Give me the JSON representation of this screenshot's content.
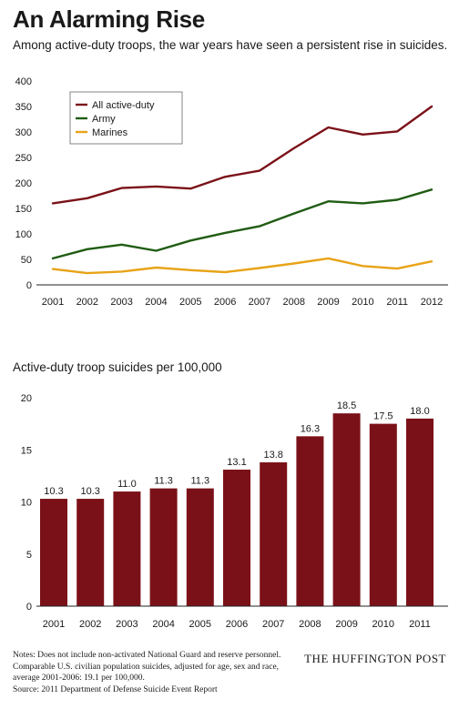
{
  "title": "An Alarming Rise",
  "subtitle": "Among active-duty troops, the war years have seen a persistent rise in suicides.",
  "colors": {
    "all": "#7b1118",
    "army": "#1f5c12",
    "marines": "#e8a317",
    "bar": "#7b1118",
    "axis": "#222222"
  },
  "chart_data": [
    {
      "type": "line",
      "title": "",
      "x": [
        "2001",
        "2002",
        "2003",
        "2004",
        "2005",
        "2006",
        "2007",
        "2008",
        "2009",
        "2010",
        "2011",
        "2012"
      ],
      "ylim": [
        0,
        400
      ],
      "yticks": [
        "0",
        "50",
        "100",
        "150",
        "200",
        "250",
        "300",
        "350",
        "400"
      ],
      "grid": false,
      "legend": "top-left",
      "series": [
        {
          "name": "All active-duty",
          "values": [
            160,
            170,
            190,
            193,
            189,
            212,
            224,
            268,
            309,
            295,
            301,
            350
          ]
        },
        {
          "name": "Army",
          "values": [
            52,
            70,
            79,
            67,
            87,
            102,
            115,
            140,
            164,
            160,
            167,
            187
          ]
        },
        {
          "name": "Marines",
          "values": [
            31,
            23,
            26,
            34,
            29,
            25,
            33,
            42,
            52,
            37,
            32,
            46
          ]
        }
      ]
    },
    {
      "type": "bar",
      "title": "Active-duty troop suicides per 100,000",
      "categories": [
        "2001",
        "2002",
        "2003",
        "2004",
        "2005",
        "2006",
        "2007",
        "2008",
        "2009",
        "2010",
        "2011"
      ],
      "values": [
        10.3,
        10.3,
        11.0,
        11.3,
        11.3,
        13.1,
        13.8,
        16.3,
        18.5,
        17.5,
        18.0
      ],
      "value_labels": [
        "10.3",
        "10.3",
        "11.0",
        "11.3",
        "11.3",
        "13.1",
        "13.8",
        "16.3",
        "18.5",
        "17.5",
        "18.0"
      ],
      "ylim": [
        0,
        20
      ],
      "yticks": [
        "0",
        "5",
        "10",
        "15",
        "20"
      ],
      "grid": false
    }
  ],
  "notes": [
    "Notes: Does not include non-activated National Guard and reserve personnel.",
    "Comparable U.S. civilian population suicides, adjusted for age, sex and race,",
    "average 2001-2006: 19.1 per 100,000.",
    "Source: 2011 Department of Defense Suicide Event Report"
  ],
  "brand": "THE HUFFINGTON POST"
}
